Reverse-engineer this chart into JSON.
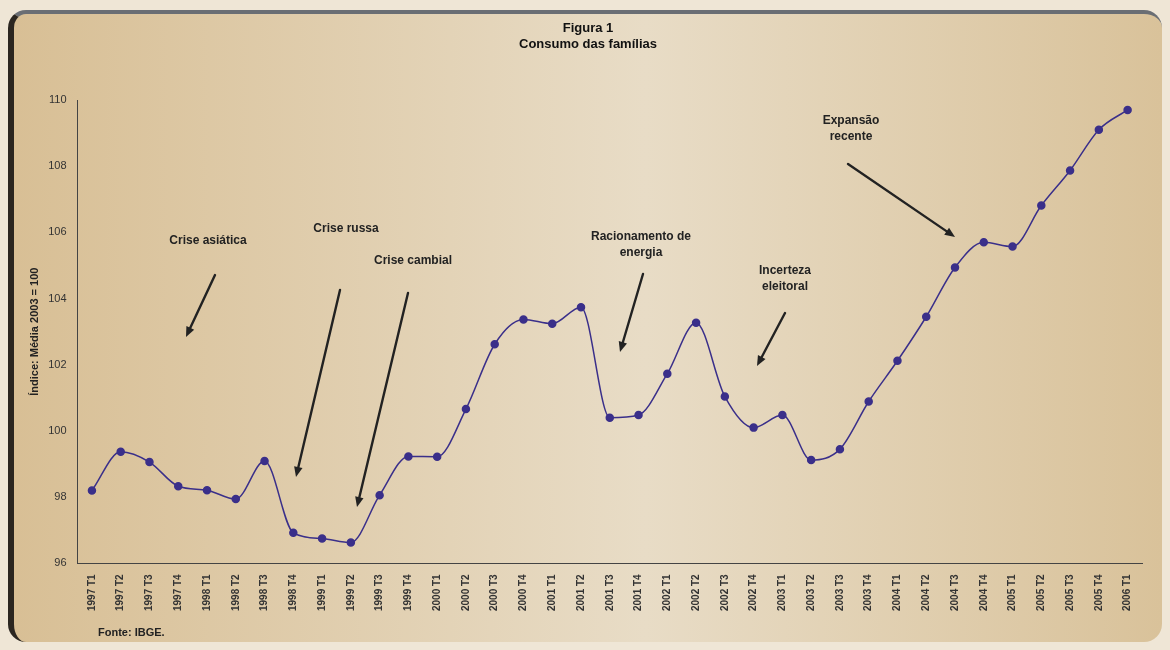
{
  "chart_data": {
    "type": "line",
    "title": "Figura 1",
    "subtitle": "Consumo das famílias",
    "ylabel": "Índice: Média 2003 = 100",
    "categories": [
      "1997 T1",
      "1997 T2",
      "1997 T3",
      "1997 T4",
      "1998 T1",
      "1998 T2",
      "1998 T3",
      "1998 T4",
      "1999 T1",
      "1999 T2",
      "1999 T3",
      "1999 T4",
      "2000 T1",
      "2000 T2",
      "2000 T3",
      "2000 T4",
      "2001 T1",
      "2001 T2",
      "2001 T3",
      "2001 T4",
      "2002 T1",
      "2002 T2",
      "2002 T3",
      "2002 T4",
      "2003 T1",
      "2003 T2",
      "2003 T3",
      "2003 T4",
      "2004 T1",
      "2004 T2",
      "2004 T3",
      "2004 T4",
      "2005 T1",
      "2005 T2",
      "2005 T3",
      "2005 T4",
      "2006 T1"
    ],
    "series": [
      {
        "color": "#3a2f8a",
        "values": [
          98.2,
          99.37,
          99.06,
          98.33,
          98.21,
          97.94,
          99.09,
          96.92,
          96.75,
          96.63,
          98.06,
          99.23,
          99.22,
          100.66,
          102.62,
          103.37,
          103.24,
          103.74,
          100.4,
          100.48,
          101.73,
          103.27,
          101.04,
          100.1,
          100.48,
          99.12,
          99.45,
          100.89,
          102.12,
          103.45,
          104.94,
          105.7,
          105.57,
          106.81,
          107.87,
          109.1,
          109.7
        ]
      }
    ],
    "ylim": [
      96,
      110
    ],
    "yticks": [
      96,
      98,
      100,
      102,
      104,
      106,
      108,
      110
    ],
    "grid": false,
    "legend": false,
    "marker": "circle",
    "line_style": "solid",
    "annotations": [
      "Crise asiática",
      "Crise russa",
      "Crise cambial",
      "Racionamento de energia",
      "Incerteza eleitoral",
      "Expansão recente",
      "Fonte: IBGE."
    ]
  }
}
